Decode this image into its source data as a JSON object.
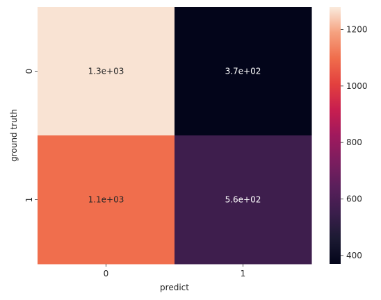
{
  "chart_data": {
    "type": "heatmap",
    "title": "",
    "xlabel": "predict",
    "ylabel": "ground truth",
    "x_categories": [
      "0",
      "1"
    ],
    "y_categories": [
      "0",
      "1"
    ],
    "values": [
      [
        1270,
        370
      ],
      [
        1100,
        560
      ]
    ],
    "annotations": [
      [
        "1.3e+03",
        "3.7e+02"
      ],
      [
        "1.1e+03",
        "5.6e+02"
      ]
    ],
    "colormap": "rocket",
    "colorbar": {
      "range": [
        370,
        1280
      ],
      "ticks": [
        400,
        600,
        800,
        1000,
        1200
      ],
      "tick_labels": [
        "400",
        "600",
        "800",
        "1000",
        "1200"
      ]
    }
  }
}
